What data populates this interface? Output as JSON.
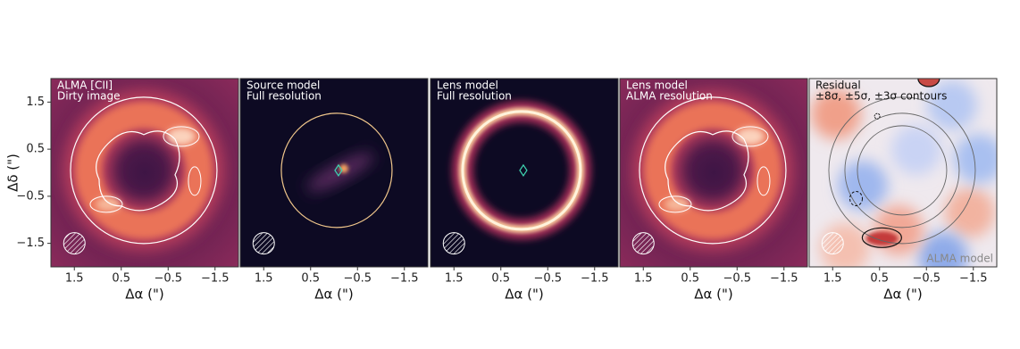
{
  "chart_data": [
    {
      "type": "image",
      "text_lines": [
        "ALMA [CII]",
        "Dirty image"
      ],
      "xlabel": "Δα (\")",
      "ylabel": "Δδ (\")",
      "xlim": [
        2,
        -2
      ],
      "ylim": [
        -2,
        2
      ],
      "xticks": [
        1.5,
        0.5,
        {
          "value": -0.5,
          "label": "−0.5"
        },
        {
          "value": -1.5,
          "label": "−1.5"
        }
      ],
      "yticks": [
        1.5,
        0.5,
        {
          "value": -0.5,
          "label": "−0.5"
        },
        {
          "value": -1.5,
          "label": "−1.5"
        }
      ]
    },
    {
      "type": "image",
      "text_lines": [
        "Source model",
        "Full resolution"
      ],
      "xlabel": "Δα (\")",
      "xlim": [
        2,
        -2
      ],
      "ylim": [
        -2,
        2
      ],
      "xticks": [
        1.5,
        0.5,
        {
          "value": -0.5,
          "label": "−0.5"
        },
        {
          "value": -1.5,
          "label": "−1.5"
        }
      ]
    },
    {
      "type": "image",
      "text_lines": [
        "Lens model",
        "Full resolution"
      ],
      "xlabel": "Δα (\")",
      "xlim": [
        2,
        -2
      ],
      "ylim": [
        -2,
        2
      ],
      "xticks": [
        1.5,
        0.5,
        {
          "value": -0.5,
          "label": "−0.5"
        },
        {
          "value": -1.5,
          "label": "−1.5"
        }
      ]
    },
    {
      "type": "image",
      "text_lines": [
        "Lens model",
        "ALMA resolution"
      ],
      "xlabel": "Δα (\")",
      "xlim": [
        2,
        -2
      ],
      "ylim": [
        -2,
        2
      ],
      "xticks": [
        1.5,
        0.5,
        {
          "value": -0.5,
          "label": "−0.5"
        },
        {
          "value": -1.5,
          "label": "−1.5"
        }
      ]
    },
    {
      "type": "image",
      "text_lines": [
        "Residual",
        "±8σ, ±5σ, ±3σ contours"
      ],
      "corner_note": "ALMA model",
      "xlabel": "Δα (\")",
      "xlim": [
        2,
        -2
      ],
      "ylim": [
        -2,
        2
      ],
      "xticks": [
        1.5,
        0.5,
        {
          "value": -0.5,
          "label": "−0.5"
        },
        {
          "value": -1.5,
          "label": "−1.5"
        }
      ]
    }
  ]
}
